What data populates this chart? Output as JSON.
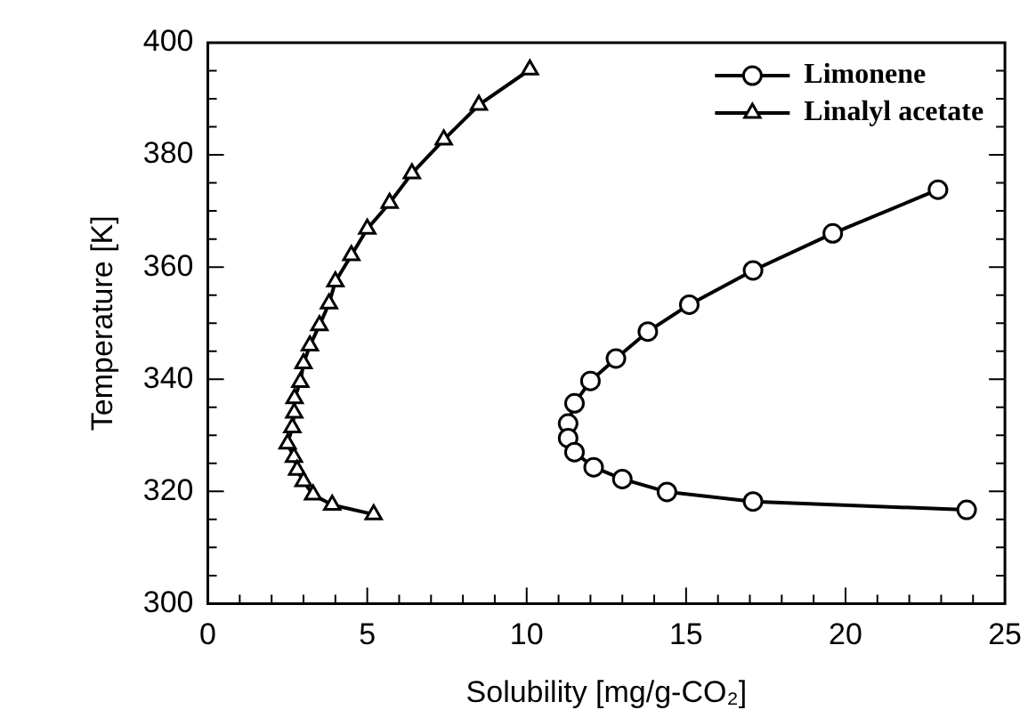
{
  "chart_data": {
    "type": "line",
    "xlabel": "Solubility [mg/g-CO₂]",
    "ylabel": "Temperature [K]",
    "xlim": [
      0,
      25
    ],
    "ylim": [
      300,
      400
    ],
    "xticks": [
      0,
      {
        "value": 1,
        "label": null
      },
      {
        "value": 2,
        "label": null
      },
      {
        "value": 3,
        "label": null
      },
      {
        "value": 4,
        "label": null
      },
      5,
      {
        "value": 6,
        "label": null
      },
      {
        "value": 7,
        "label": null
      },
      {
        "value": 8,
        "label": null
      },
      {
        "value": 9,
        "label": null
      },
      10,
      {
        "value": 11,
        "label": null
      },
      {
        "value": 12,
        "label": null
      },
      {
        "value": 13,
        "label": null
      },
      {
        "value": 14,
        "label": null
      },
      15,
      {
        "value": 16,
        "label": null
      },
      {
        "value": 17,
        "label": null
      },
      {
        "value": 18,
        "label": null
      },
      {
        "value": 19,
        "label": null
      },
      20,
      {
        "value": 21,
        "label": null
      },
      {
        "value": 22,
        "label": null
      },
      {
        "value": 23,
        "label": null
      },
      {
        "value": 24,
        "label": null
      },
      25
    ],
    "yticks": [
      300,
      {
        "value": 305,
        "label": null
      },
      {
        "value": 310,
        "label": null
      },
      {
        "value": 315,
        "label": null
      },
      320,
      {
        "value": 325,
        "label": null
      },
      {
        "value": 330,
        "label": null
      },
      {
        "value": 335,
        "label": null
      },
      340,
      {
        "value": 345,
        "label": null
      },
      {
        "value": 350,
        "label": null
      },
      {
        "value": 355,
        "label": null
      },
      360,
      {
        "value": 365,
        "label": null
      },
      {
        "value": 370,
        "label": null
      },
      {
        "value": 375,
        "label": null
      },
      380,
      {
        "value": 385,
        "label": null
      },
      {
        "value": 390,
        "label": null
      },
      {
        "value": 395,
        "label": null
      },
      400
    ],
    "grid": false,
    "legend": "top right",
    "line_style": "solid",
    "series": [
      {
        "name": "Limonene",
        "color": "#000000",
        "marker": "circle",
        "x": [
          22.9,
          19.6,
          17.1,
          15.1,
          13.8,
          12.8,
          12.0,
          11.5,
          11.3,
          11.3,
          11.5,
          12.1,
          13.0,
          14.4,
          17.1,
          23.8
        ],
        "values": [
          373.8,
          366.0,
          359.4,
          353.3,
          348.5,
          343.7,
          339.7,
          335.7,
          332.1,
          329.5,
          327.0,
          324.3,
          322.2,
          319.9,
          318.2,
          316.7
        ]
      },
      {
        "name": "Linalyl acetate",
        "color": "#000000",
        "marker": "triangle",
        "x": [
          10.1,
          8.5,
          7.4,
          6.4,
          5.7,
          5.0,
          4.5,
          4.0,
          3.8,
          3.5,
          3.2,
          3.0,
          2.9,
          2.72,
          2.71,
          2.65,
          2.5,
          2.7,
          2.8,
          3.0,
          3.3,
          3.9,
          5.2
        ],
        "values": [
          395.2,
          388.9,
          382.7,
          376.7,
          371.4,
          366.8,
          362.1,
          357.4,
          353.5,
          349.6,
          346.0,
          342.8,
          339.5,
          336.6,
          334.0,
          331.4,
          328.5,
          326.1,
          323.8,
          321.8,
          319.4,
          317.6,
          315.9
        ]
      }
    ]
  }
}
